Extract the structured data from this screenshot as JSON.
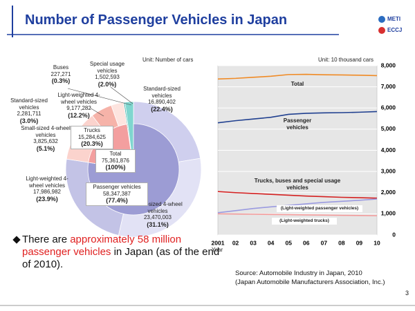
{
  "title": "Number of Passenger Vehicles in Japan",
  "logos": [
    "METI",
    "ECCJ"
  ],
  "page_number": "3",
  "bullet": [
    "There are ",
    "approximately 58 million passenger vehicles",
    " in Japan (as of the end of 2010)."
  ],
  "source": [
    "Source: Automobile Industry in Japan, 2010",
    "(Japan Automobile Manufacturers Association, Inc.)"
  ],
  "chart_data": [
    {
      "type": "pie",
      "unit": "Unit: Number of cars",
      "total": {
        "name": "Total",
        "value": 75361876,
        "value_label": "75,361,876",
        "percent_label": "(100%)"
      },
      "inner": {
        "categories": [
          "Passenger vehicles",
          "Trucks"
        ],
        "values": [
          58347387,
          15284625
        ],
        "value_labels": [
          "58,347,387",
          "15,284,625"
        ],
        "percent_labels": [
          "(77.4%)",
          "(20.3%)"
        ],
        "colors": [
          "#9c9cd4",
          "#f39f9f"
        ]
      },
      "outer": {
        "categories": [
          "Standard-sized vehicles",
          "Small-sized 4-wheel vehicles",
          "Light-weighted 4-wheel vehicles",
          "Light-weighted 4-wheel vehicles",
          "Small-sized 4-wheel vehicles",
          "Standard-sized vehicles",
          "Buses",
          "Special usage vehicles"
        ],
        "values": [
          16890402,
          23470003,
          17986982,
          9177282,
          3825632,
          2281711,
          227271,
          1502593
        ],
        "value_labels": [
          "16,890,402",
          "23,470,003",
          "17,986,982",
          "9,177,282",
          "3,825,632",
          "2,281,711",
          "227,271",
          "1,502,593"
        ],
        "percent_labels": [
          "(22.4%)",
          "(31.1%)",
          "(23.9%)",
          "(12.2%)",
          "(5.1%)",
          "(3.0%)",
          "(0.3%)",
          "(2.0%)"
        ],
        "colors": [
          "#cfcfee",
          "#e2e2f5",
          "#c3c3e6",
          "#fbd3cd",
          "#f6b3a9",
          "#fde4df",
          "#2fae a5",
          "#7fd6cf"
        ]
      }
    },
    {
      "type": "line",
      "unit": "Unit: 10 thousand cars",
      "xlabel": "Year",
      "categories": [
        "2001",
        "02",
        "03",
        "04",
        "05",
        "06",
        "07",
        "08",
        "09",
        "10"
      ],
      "ylim": [
        0,
        8000
      ],
      "yticks": [
        0,
        {
          "value": 1000,
          "label": "1,000"
        },
        {
          "value": 2000,
          "label": "2,000"
        },
        {
          "value": 3000,
          "label": "3,000"
        },
        {
          "value": 4000,
          "label": "4,000"
        },
        {
          "value": 5000,
          "label": "5,000"
        },
        {
          "value": 6000,
          "label": "6,000"
        },
        {
          "value": 7000,
          "label": "7,000"
        },
        {
          "value": 8000,
          "label": "8,000"
        }
      ],
      "grid": true,
      "series": [
        {
          "name": "Total",
          "color": "#f08a24",
          "values": [
            7370,
            7400,
            7450,
            7500,
            7580,
            7590,
            7570,
            7560,
            7550,
            7530
          ]
        },
        {
          "name": "Passenger vehicles",
          "color": "#1f3f8f",
          "values": [
            5300,
            5400,
            5480,
            5560,
            5700,
            5750,
            5770,
            5780,
            5800,
            5830
          ]
        },
        {
          "name": "Trucks, buses and special usage vehicles",
          "color": "#d42020",
          "values": [
            2050,
            2000,
            1960,
            1920,
            1880,
            1840,
            1810,
            1780,
            1760,
            1740
          ]
        },
        {
          "name": "(Light-weighted passenger vehicles)",
          "color": "#9a9ae0",
          "values": [
            1050,
            1150,
            1250,
            1330,
            1400,
            1470,
            1540,
            1590,
            1640,
            1700
          ]
        },
        {
          "name": "(Light-weighted trucks)",
          "color": "#f39a9a",
          "values": [
            1000,
            990,
            980,
            970,
            960,
            950,
            940,
            930,
            920,
            910
          ]
        }
      ]
    }
  ]
}
